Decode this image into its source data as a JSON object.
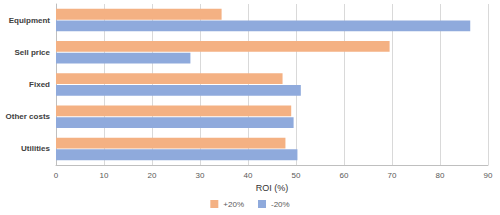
{
  "chart_data": {
    "type": "bar",
    "orientation": "horizontal",
    "xlabel": "ROI (%)",
    "categories": [
      "Equipment",
      "Sell price",
      "Fixed",
      "Other costs",
      "Utilities"
    ],
    "series": [
      {
        "name": "+20%",
        "color": "#F4B183",
        "values": [
          34.5,
          69.5,
          47.2,
          49.0,
          47.8
        ]
      },
      {
        "name": "-20%",
        "color": "#8FAADC",
        "values": [
          86.3,
          28.0,
          51.0,
          49.5,
          50.3
        ]
      }
    ],
    "xlim": [
      0,
      90
    ],
    "xticks": [
      0,
      10,
      20,
      30,
      40,
      50,
      60,
      70,
      80,
      90
    ],
    "grid": true,
    "legend": "bottom"
  }
}
